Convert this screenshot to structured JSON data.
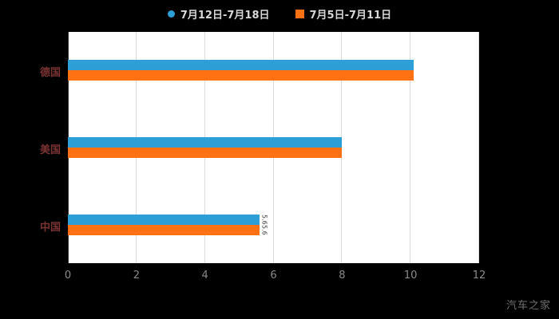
{
  "legend": [
    {
      "label": "7月12日-7月18日",
      "marker": "circle",
      "color": "#2e9fd6"
    },
    {
      "label": "7月5日-7月11日",
      "marker": "square",
      "color": "#ff7112"
    }
  ],
  "watermark": "汽车之家",
  "styles": {
    "background": "#000000",
    "plot_background": "#ffffff",
    "grid_color": "#dcdcdc",
    "axis_line_color": "#333333",
    "legend_text_color": "#d8d8d8",
    "category_label_color": "#7a3333",
    "tick_label_color": "#8a8a8a",
    "annotation_color": "#333333",
    "watermark_color": "#6f6f6f"
  },
  "chart_data": {
    "type": "bar",
    "orientation": "horizontal",
    "title": "",
    "xlabel": "",
    "ylabel": "",
    "categories": [
      "德国",
      "美国",
      "中国"
    ],
    "series": [
      {
        "name": "7月12日-7月18日",
        "color": "#2e9fd6",
        "values": [
          10.1,
          8,
          5.6
        ]
      },
      {
        "name": "7月5日-7月11日",
        "color": "#ff7112",
        "values": [
          10.1,
          8,
          5.6
        ]
      }
    ],
    "xlim": [
      0,
      12
    ],
    "xticks": [
      0,
      2,
      4,
      6,
      8,
      10,
      12
    ],
    "grid": true,
    "legend_position": "top",
    "annotations": [
      {
        "text": "5.6",
        "category_index": 2,
        "series_index": 0
      },
      {
        "text": "5.6",
        "category_index": 2,
        "series_index": 1
      }
    ]
  }
}
